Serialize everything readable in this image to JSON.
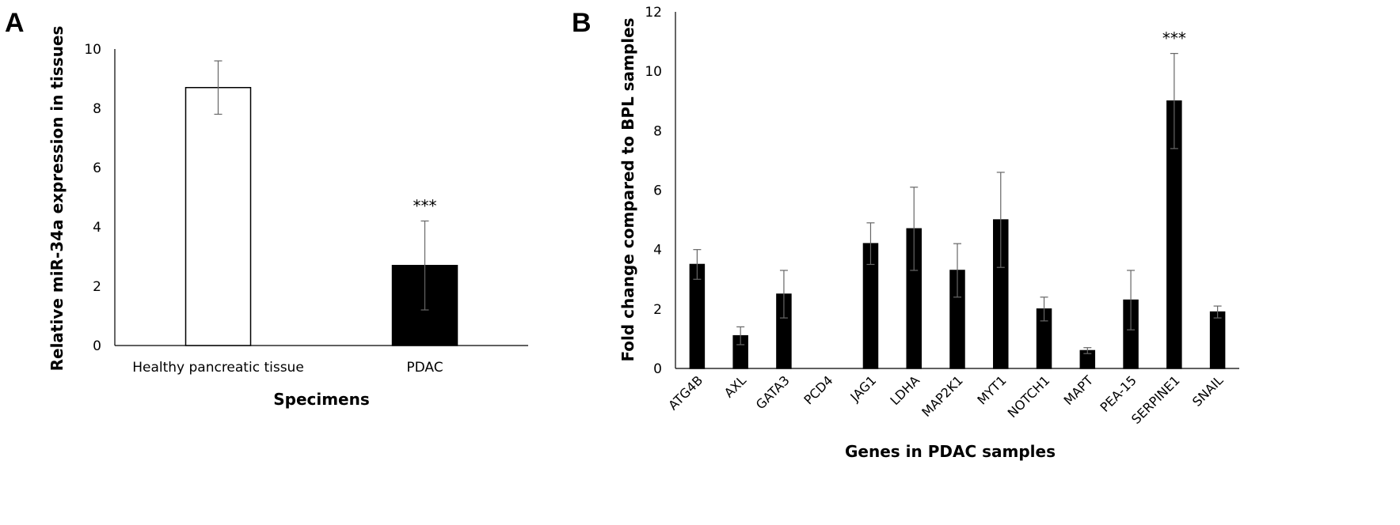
{
  "chart_data": [
    {
      "panel": "A",
      "type": "bar",
      "xlabel": "Specimens",
      "ylabel": "Relative miR-34a expression in tissues",
      "ylim": [
        0,
        10
      ],
      "yticks": [
        "0",
        "2",
        "4",
        "6",
        "8",
        "10"
      ],
      "categories": [
        "Healthy pancreatic tissue",
        "PDAC"
      ],
      "values": [
        8.7,
        2.7
      ],
      "errors": [
        0.9,
        1.5
      ],
      "colors": [
        "#ffffff",
        "#000000"
      ],
      "annotations": [
        "",
        "***"
      ],
      "grid": false
    },
    {
      "panel": "B",
      "type": "bar",
      "xlabel": "Genes in PDAC samples",
      "ylabel": "Fold change compared to BPL samples",
      "ylim": [
        0,
        12
      ],
      "yticks": [
        "0",
        "2",
        "4",
        "6",
        "8",
        "10",
        "12"
      ],
      "categories": [
        "ATG4B",
        "AXL",
        "GATA3",
        "PCD4",
        "JAG1",
        "LDHA",
        "MAP2K1",
        "MYT1",
        "NOTCH1",
        "MAPT",
        "PEA-15",
        "SERPINE1",
        "SNAIL"
      ],
      "values": [
        3.5,
        1.1,
        2.5,
        0,
        4.2,
        4.7,
        3.3,
        5.0,
        2.0,
        0.6,
        2.3,
        9.0,
        1.9
      ],
      "errors": [
        0.5,
        0.3,
        0.8,
        0,
        0.7,
        1.4,
        0.9,
        1.6,
        0.4,
        0.1,
        1.0,
        1.6,
        0.2
      ],
      "colors": [
        "#000000"
      ],
      "annotations": [
        "",
        "",
        "",
        "",
        "",
        "",
        "",
        "",
        "",
        "",
        "",
        "***",
        ""
      ],
      "grid": false
    }
  ]
}
